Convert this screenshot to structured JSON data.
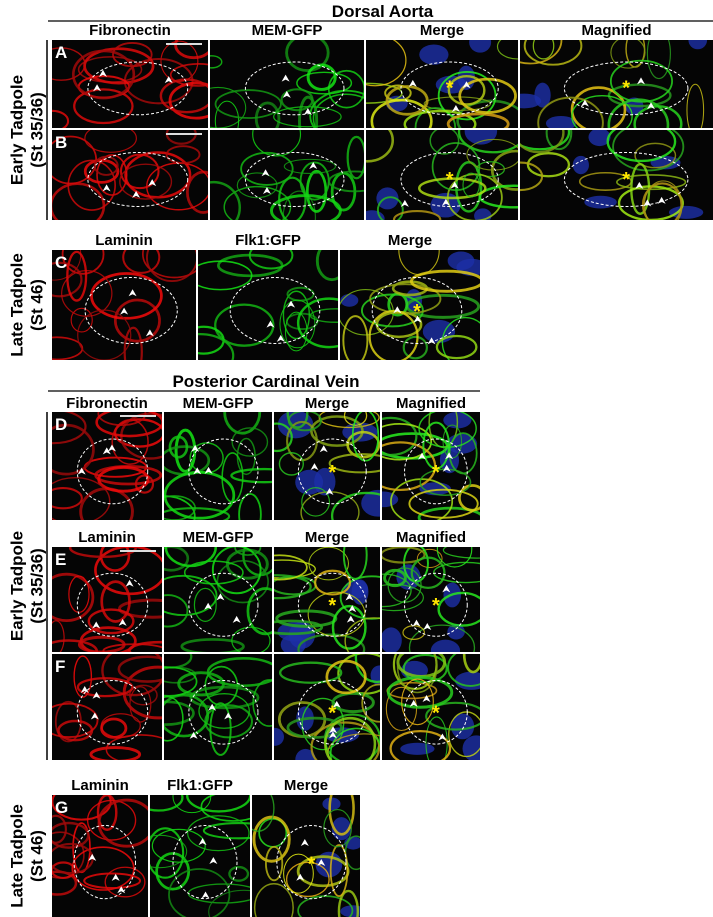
{
  "section_titles": [
    "Dorsal Aorta",
    "Posterior Cardinal Vein"
  ],
  "header_rows": [
    [
      "Fibronectin",
      "MEM-GFP",
      "Merge",
      "Magnified"
    ],
    [
      "Laminin",
      "Flk1:GFP",
      "Merge"
    ],
    [
      "Fibronectin",
      "MEM-GFP",
      "Merge",
      "Magnified"
    ],
    [
      "Laminin",
      "MEM-GFP",
      "Merge",
      "Magnified"
    ],
    [
      "Laminin",
      "Flk1:GFP",
      "Merge"
    ]
  ],
  "panel_rows": [
    "A",
    "B",
    "C",
    "D",
    "E",
    "F",
    "G"
  ],
  "stage_labels": [
    [
      "Early Tadpole",
      "(St 35/36)"
    ],
    [
      "Late Tadpole",
      "(St 46)"
    ],
    [
      "Early Tadpole",
      "(St 35/36)"
    ],
    [
      "Late Tadpole",
      "(St 46)"
    ]
  ],
  "asterisk": "*"
}
